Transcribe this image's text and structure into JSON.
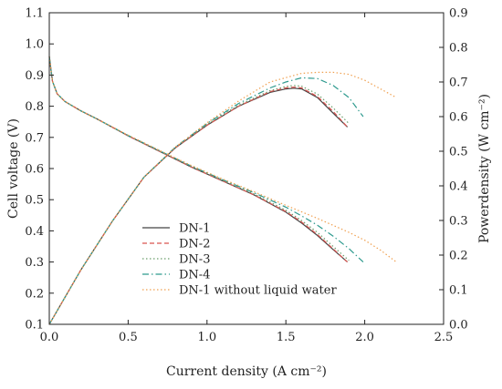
{
  "chart_data": {
    "type": "line",
    "xlabel": "Current density (A cm⁻²)",
    "ylabel": "Cell voltage (V)",
    "y2label": "Powerdensity (W cm⁻²)",
    "xlim": [
      0.0,
      2.5
    ],
    "ylim": [
      0.1,
      1.1
    ],
    "y2lim": [
      0.0,
      0.9
    ],
    "xticks": [
      0.0,
      0.5,
      1.0,
      1.5,
      2.0,
      2.5
    ],
    "xtick_labels": [
      "0.0",
      "0.5",
      "1.0",
      "1.5",
      "2.0",
      "2.5"
    ],
    "yticks": [
      0.1,
      0.2,
      0.3,
      0.4,
      0.5,
      0.6,
      0.7,
      0.8,
      0.9,
      1.0,
      1.1
    ],
    "ytick_labels": [
      "0.1",
      "0.2",
      "0.3",
      "0.4",
      "0.5",
      "0.6",
      "0.7",
      "0.8",
      "0.9",
      "1.0",
      "1.1"
    ],
    "y2ticks": [
      0.0,
      0.1,
      0.2,
      0.3,
      0.4,
      0.5,
      0.6,
      0.7,
      0.8,
      0.9
    ],
    "y2tick_labels": [
      "0.0",
      "0.1",
      "0.2",
      "0.3",
      "0.4",
      "0.5",
      "0.6",
      "0.7",
      "0.8",
      "0.9"
    ],
    "grid": false,
    "legend_position": "bottom-left",
    "series": [
      {
        "name": "DN-1",
        "color": "#444444",
        "dash": "solid",
        "voltage": {
          "x": [
            0.0,
            0.02,
            0.05,
            0.1,
            0.2,
            0.3,
            0.5,
            0.7,
            0.9,
            1.1,
            1.3,
            1.5,
            1.6,
            1.7,
            1.8,
            1.89
          ],
          "y": [
            0.96,
            0.88,
            0.84,
            0.815,
            0.785,
            0.76,
            0.705,
            0.655,
            0.605,
            0.56,
            0.515,
            0.46,
            0.425,
            0.385,
            0.34,
            0.3
          ]
        },
        "power": {
          "x": [
            0.0,
            0.2,
            0.4,
            0.6,
            0.8,
            1.0,
            1.2,
            1.4,
            1.5,
            1.55,
            1.6,
            1.7,
            1.8,
            1.89
          ],
          "y": [
            0.0,
            0.157,
            0.298,
            0.425,
            0.51,
            0.575,
            0.63,
            0.67,
            0.68,
            0.682,
            0.68,
            0.655,
            0.61,
            0.57
          ]
        }
      },
      {
        "name": "DN-2",
        "color": "#d9534f",
        "dash": "dashed",
        "voltage": {
          "x": [
            0.0,
            0.02,
            0.05,
            0.1,
            0.2,
            0.3,
            0.5,
            0.7,
            0.9,
            1.1,
            1.3,
            1.5,
            1.6,
            1.7,
            1.8,
            1.89
          ],
          "y": [
            0.96,
            0.88,
            0.84,
            0.815,
            0.785,
            0.76,
            0.705,
            0.655,
            0.605,
            0.56,
            0.515,
            0.462,
            0.428,
            0.388,
            0.342,
            0.3
          ]
        },
        "power": {
          "x": [
            0.0,
            0.2,
            0.4,
            0.6,
            0.8,
            1.0,
            1.2,
            1.4,
            1.5,
            1.55,
            1.6,
            1.7,
            1.8,
            1.89
          ],
          "y": [
            0.0,
            0.157,
            0.298,
            0.425,
            0.51,
            0.575,
            0.63,
            0.672,
            0.683,
            0.685,
            0.683,
            0.658,
            0.615,
            0.57
          ]
        }
      },
      {
        "name": "DN-3",
        "color": "#6b9e6b",
        "dash": "dotted",
        "voltage": {
          "x": [
            0.0,
            0.02,
            0.05,
            0.1,
            0.2,
            0.3,
            0.5,
            0.7,
            0.9,
            1.1,
            1.3,
            1.5,
            1.6,
            1.7,
            1.8,
            1.9
          ],
          "y": [
            0.96,
            0.88,
            0.84,
            0.815,
            0.785,
            0.76,
            0.706,
            0.656,
            0.607,
            0.562,
            0.518,
            0.466,
            0.433,
            0.395,
            0.35,
            0.305
          ]
        },
        "power": {
          "x": [
            0.0,
            0.2,
            0.4,
            0.6,
            0.8,
            1.0,
            1.2,
            1.4,
            1.5,
            1.55,
            1.6,
            1.7,
            1.8,
            1.9
          ],
          "y": [
            0.0,
            0.157,
            0.298,
            0.425,
            0.512,
            0.578,
            0.633,
            0.675,
            0.687,
            0.69,
            0.688,
            0.665,
            0.625,
            0.58
          ]
        }
      },
      {
        "name": "DN-4",
        "color": "#2e9a8e",
        "dash": "dashdot",
        "voltage": {
          "x": [
            0.0,
            0.02,
            0.05,
            0.1,
            0.2,
            0.3,
            0.5,
            0.7,
            0.9,
            1.1,
            1.3,
            1.5,
            1.6,
            1.7,
            1.8,
            1.9,
            1.99
          ],
          "y": [
            0.96,
            0.88,
            0.84,
            0.815,
            0.785,
            0.76,
            0.706,
            0.657,
            0.608,
            0.564,
            0.522,
            0.476,
            0.448,
            0.418,
            0.383,
            0.343,
            0.3
          ]
        },
        "power": {
          "x": [
            0.0,
            0.2,
            0.4,
            0.6,
            0.8,
            1.0,
            1.2,
            1.4,
            1.5,
            1.6,
            1.7,
            1.8,
            1.9,
            1.99
          ],
          "y": [
            0.0,
            0.157,
            0.298,
            0.425,
            0.512,
            0.58,
            0.638,
            0.683,
            0.7,
            0.712,
            0.71,
            0.69,
            0.655,
            0.6
          ]
        }
      },
      {
        "name": "DN-1 without liquid water",
        "color": "#f0a050",
        "dash": "dotted",
        "voltage": {
          "x": [
            0.0,
            0.02,
            0.05,
            0.1,
            0.2,
            0.3,
            0.5,
            0.7,
            0.9,
            1.1,
            1.3,
            1.5,
            1.7,
            1.9,
            2.0,
            2.1,
            2.2
          ],
          "y": [
            0.96,
            0.88,
            0.84,
            0.815,
            0.785,
            0.76,
            0.707,
            0.658,
            0.61,
            0.566,
            0.525,
            0.482,
            0.44,
            0.395,
            0.37,
            0.338,
            0.3
          ]
        },
        "power": {
          "x": [
            0.0,
            0.2,
            0.4,
            0.6,
            0.8,
            1.0,
            1.2,
            1.4,
            1.6,
            1.7,
            1.8,
            1.9,
            2.0,
            2.1,
            2.2
          ],
          "y": [
            0.0,
            0.157,
            0.298,
            0.425,
            0.512,
            0.582,
            0.645,
            0.7,
            0.725,
            0.728,
            0.728,
            0.722,
            0.705,
            0.68,
            0.655
          ]
        }
      }
    ]
  }
}
